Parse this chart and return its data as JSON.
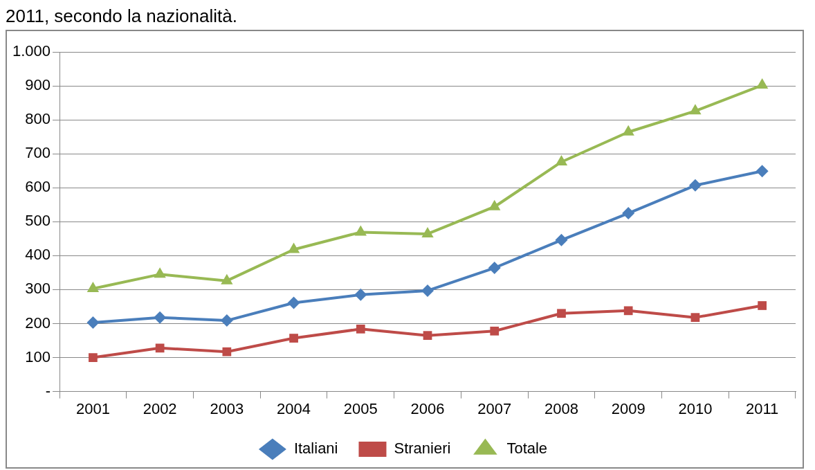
{
  "chart_data": {
    "type": "line",
    "title": "2011, secondo la nazionalità.",
    "categories": [
      "2001",
      "2002",
      "2003",
      "2004",
      "2005",
      "2006",
      "2007",
      "2008",
      "2009",
      "2010",
      "2011"
    ],
    "series": [
      {
        "name": "Italiani",
        "color": "#4a7ebb",
        "marker": "diamond",
        "values": [
          203,
          218,
          209,
          261,
          285,
          297,
          364,
          446,
          525,
          607,
          649
        ]
      },
      {
        "name": "Stranieri",
        "color": "#be4b48",
        "marker": "square",
        "values": [
          100,
          128,
          117,
          157,
          184,
          165,
          178,
          230,
          238,
          218,
          253
        ]
      },
      {
        "name": "Totale",
        "color": "#98b954",
        "marker": "triangle",
        "values": [
          303,
          345,
          326,
          418,
          469,
          464,
          544,
          676,
          764,
          826,
          902
        ]
      }
    ],
    "ylim": [
      0,
      1000
    ],
    "yticks": [
      {
        "value": 0,
        "label": "-"
      },
      100,
      200,
      300,
      400,
      500,
      600,
      700,
      800,
      900,
      {
        "value": 1000,
        "label": "1.000"
      }
    ],
    "grid": "y",
    "legend": "bottom",
    "line_style": "solid"
  }
}
